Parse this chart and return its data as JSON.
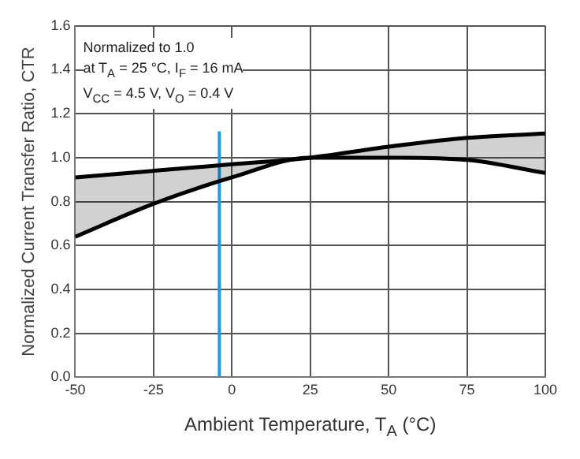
{
  "chart_data": {
    "type": "line",
    "xlabel": "Ambient Temperature, T$_{A}$ (°C)",
    "ylabel": "Normalized Current Transfer Ratio, CTR",
    "annotations": [
      "Normalized to 1.0",
      "at T$_{A}$ = 25 °C, I$_{F}$ = 16 mA",
      "V$_{CC}$ = 4.5 V, V$_{O}$ = 0.4 V"
    ],
    "x": [
      -50,
      -25,
      0,
      25,
      50,
      75,
      100
    ],
    "series": [
      {
        "color": "#000000",
        "values": [
          0.91,
          0.94,
          0.97,
          1.0,
          1.05,
          1.09,
          1.11
        ],
        "lower": [
          0.64,
          0.79,
          0.91,
          1.0,
          1.0,
          0.99,
          0.93
        ],
        "upper": [
          0.91,
          0.94,
          0.97,
          1.0,
          1.05,
          1.09,
          1.11
        ]
      },
      {
        "color": "#000000",
        "values": [
          0.64,
          0.79,
          0.91,
          1.0,
          1.0,
          0.99,
          0.93
        ]
      },
      {
        "color": "#1e9be6",
        "x": [
          -4,
          -4
        ],
        "values": [
          0,
          1.12
        ]
      }
    ],
    "xlim": [
      -50,
      100
    ],
    "xticks": [
      {
        "value": -50,
        "label": "-50"
      },
      {
        "value": -25,
        "label": "-25"
      },
      0,
      25,
      50,
      75,
      100
    ],
    "ylim": [
      0,
      1.6
    ],
    "yticks": [
      {
        "value": 0,
        "label": "0.0"
      },
      0.2,
      0.4,
      0.6,
      0.8,
      {
        "value": 1,
        "label": "1.0"
      },
      1.2,
      1.4,
      1.6
    ],
    "grid": true,
    "legend": false,
    "marker": "none",
    "line_style": "solid"
  }
}
